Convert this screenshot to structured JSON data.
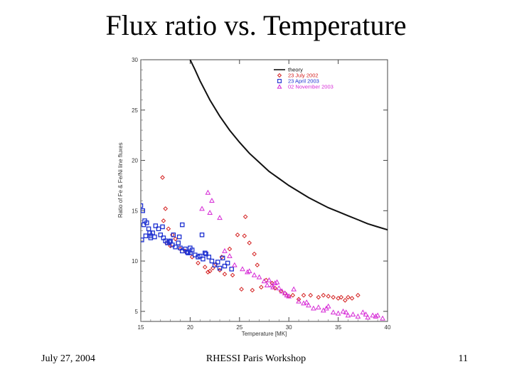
{
  "slide": {
    "title": "Flux ratio vs. Temperature",
    "footer_left": "July 27, 2004",
    "footer_center": "RHESSI Paris Workshop",
    "footer_right": "11"
  },
  "colors": {
    "theory": "#111111",
    "july2002": "#d42020",
    "april2003": "#1c2fd0",
    "nov2003": "#d62ad6"
  },
  "chart_data": {
    "type": "scatter",
    "title": "",
    "xlabel": "Temperature [MK]",
    "ylabel": "Ratio of Fe & Fe/Ni line fluxes",
    "xlim": [
      15,
      40
    ],
    "ylim": [
      4,
      30
    ],
    "xticks": [
      15,
      20,
      25,
      30,
      35,
      40
    ],
    "yticks": [
      5,
      10,
      15,
      20,
      25,
      30
    ],
    "legend_position": "top-right",
    "series": [
      {
        "name": "theory",
        "kind": "line",
        "color": "#111111",
        "x": [
          20.0,
          20.5,
          21,
          22,
          23,
          24,
          25,
          26,
          27,
          28,
          29,
          30,
          31,
          32,
          33,
          34,
          35,
          36,
          37,
          38,
          39,
          40
        ],
        "y": [
          30.0,
          29.0,
          27.9,
          26.0,
          24.4,
          23.0,
          21.8,
          20.7,
          19.8,
          18.9,
          18.2,
          17.5,
          16.9,
          16.3,
          15.8,
          15.3,
          14.9,
          14.5,
          14.1,
          13.7,
          13.4,
          13.1
        ]
      },
      {
        "name": "23 July 2002",
        "kind": "scatter",
        "marker": "diamond",
        "color": "#d42020",
        "x": [
          17.2,
          17.5,
          17.3,
          17.8,
          18.2,
          18.5,
          18.0,
          17.6,
          19.0,
          19.5,
          20.2,
          20.8,
          21.5,
          22.0,
          22.3,
          21.8,
          23.0,
          23.5,
          24.3,
          24.8,
          25.5,
          26.0,
          25.2,
          26.3,
          27.2,
          26.8,
          27.7,
          28.3,
          28.6,
          29.2,
          29.6,
          30.0,
          30.4,
          31.0,
          31.5,
          32.2,
          33.0,
          33.5,
          34.0,
          34.5,
          35.0,
          35.3,
          35.7,
          36.0,
          36.4,
          37.0,
          25.6,
          26.5,
          24.0,
          23.2,
          22.6
        ],
        "y": [
          18.3,
          15.2,
          14.0,
          13.2,
          12.6,
          12.2,
          11.5,
          11.8,
          11.2,
          11.0,
          10.4,
          9.8,
          9.4,
          9.0,
          9.3,
          8.9,
          9.1,
          8.7,
          8.6,
          12.6,
          12.5,
          11.8,
          7.2,
          7.1,
          7.4,
          9.6,
          8.1,
          7.8,
          7.3,
          7.0,
          6.8,
          6.5,
          6.6,
          6.2,
          6.6,
          6.6,
          6.4,
          6.6,
          6.5,
          6.4,
          6.3,
          6.4,
          6.1,
          6.4,
          6.3,
          6.6,
          14.4,
          10.7,
          11.2,
          10.4,
          9.7
        ]
      },
      {
        "name": "23 April 2003",
        "kind": "scatter",
        "marker": "square",
        "color": "#1c2fd0",
        "x": [
          15.0,
          15.2,
          15.4,
          15.6,
          15.8,
          15.3,
          15.9,
          16.0,
          16.2,
          16.4,
          16.8,
          17.0,
          17.3,
          17.5,
          17.7,
          18.0,
          18.2,
          18.5,
          18.8,
          19.0,
          19.2,
          19.5,
          19.7,
          20.0,
          20.2,
          20.5,
          20.8,
          21.0,
          21.3,
          21.6,
          21.9,
          22.2,
          22.5,
          23.0,
          23.3,
          23.5,
          23.8,
          24.2,
          19.2,
          16.5,
          17.2,
          18.3,
          16.0,
          15.5,
          15.1,
          21.2,
          20.0,
          18.9,
          17.9,
          19.8,
          22.8,
          21.5
        ],
        "y": [
          15.5,
          15.0,
          14.0,
          13.8,
          13.2,
          13.6,
          12.8,
          12.5,
          12.8,
          12.4,
          13.2,
          12.6,
          12.3,
          12.0,
          11.8,
          12.0,
          11.6,
          11.4,
          11.8,
          11.3,
          11.0,
          11.2,
          10.9,
          10.8,
          11.1,
          10.6,
          10.4,
          10.5,
          10.2,
          10.7,
          10.4,
          10.0,
          9.6,
          9.3,
          10.3,
          9.5,
          9.8,
          9.2,
          13.6,
          13.5,
          13.4,
          12.6,
          12.3,
          12.5,
          12.1,
          12.6,
          11.3,
          12.4,
          11.9,
          10.8,
          9.9,
          10.8
        ]
      },
      {
        "name": "02 November 2003",
        "kind": "scatter",
        "marker": "triangle",
        "color": "#d62ad6",
        "x": [
          21.8,
          22.2,
          21.2,
          22.0,
          23.0,
          23.5,
          24.0,
          24.5,
          25.3,
          26.0,
          26.5,
          27.0,
          27.5,
          27.8,
          28.0,
          28.3,
          28.6,
          29.0,
          29.3,
          29.6,
          30.0,
          30.5,
          31.0,
          31.5,
          32.0,
          32.5,
          33.0,
          33.5,
          34.0,
          34.5,
          35.0,
          35.5,
          36.0,
          36.5,
          37.0,
          37.5,
          38.0,
          38.5,
          39.0,
          39.5,
          28.4,
          29.8,
          31.8,
          33.8,
          35.8,
          37.8,
          38.8,
          25.8,
          28.8
        ],
        "y": [
          16.8,
          16.0,
          15.2,
          14.8,
          14.3,
          11.0,
          10.5,
          9.6,
          9.2,
          9.0,
          8.6,
          8.4,
          8.0,
          7.6,
          8.1,
          7.6,
          7.8,
          7.3,
          7.0,
          6.8,
          6.5,
          7.2,
          6.0,
          5.8,
          5.6,
          5.3,
          5.4,
          5.1,
          5.5,
          4.9,
          4.8,
          5.0,
          4.6,
          4.7,
          4.5,
          4.9,
          4.4,
          4.6,
          4.6,
          4.3,
          7.4,
          6.6,
          5.9,
          5.3,
          4.9,
          4.7,
          4.5,
          8.9,
          7.9
        ]
      }
    ]
  }
}
